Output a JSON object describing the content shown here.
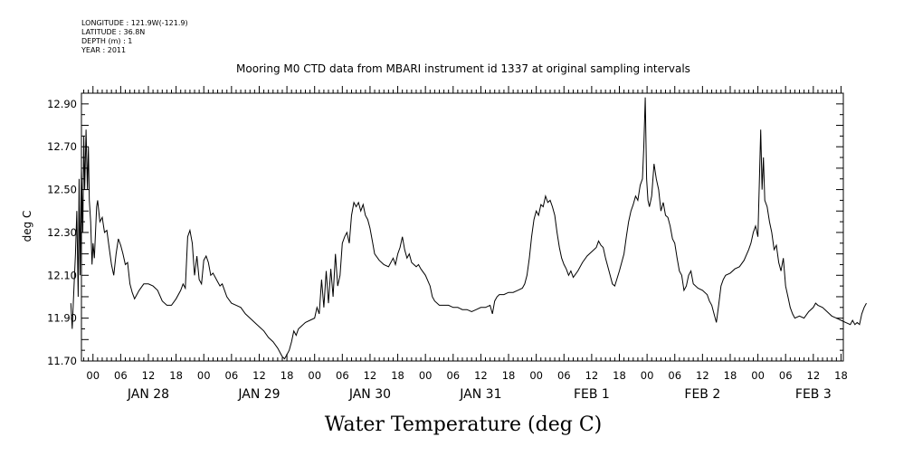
{
  "meta": {
    "longitude": "LONGITUDE : 121.9W(-121.9)",
    "latitude": "LATITUDE : 36.8N",
    "depth": "DEPTH (m) : 1",
    "year": "YEAR : 2011"
  },
  "chart_data": {
    "type": "line",
    "title": "Mooring M0 CTD data from MBARI instrument id 1337 at original sampling intervals",
    "xlabel": "Water Temperature (deg C)",
    "ylabel": "deg C",
    "ylim": [
      11.7,
      12.95
    ],
    "yticks": [
      "11.70",
      "11.90",
      "12.10",
      "12.30",
      "12.50",
      "12.70",
      "12.90"
    ],
    "x_units": "hours since JAN 28 00:00",
    "xlim": [
      -2.5,
      162.5
    ],
    "hour_ticks": [
      "00",
      "06",
      "12",
      "18",
      "00",
      "06",
      "12",
      "18",
      "00",
      "06",
      "12",
      "18",
      "00",
      "06",
      "12",
      "18",
      "00",
      "06",
      "12",
      "18",
      "00",
      "06",
      "12",
      "18",
      "00",
      "06",
      "12",
      "18"
    ],
    "day_labels": [
      "JAN 28",
      "JAN 29",
      "JAN 30",
      "JAN 31",
      "FEB  1",
      "FEB  2",
      "FEB  3"
    ],
    "grid": false,
    "series": [
      {
        "color": "#000000",
        "points": [
          [
            -4.8,
            11.97
          ],
          [
            -4.5,
            11.85
          ],
          [
            -4.2,
            12.0
          ],
          [
            -3.8,
            12.2
          ],
          [
            -3.5,
            12.4
          ],
          [
            -3.2,
            12.0
          ],
          [
            -3.0,
            12.55
          ],
          [
            -2.8,
            12.1
          ],
          [
            -2.5,
            12.6
          ],
          [
            -2.2,
            12.3
          ],
          [
            -2.0,
            12.75
          ],
          [
            -1.8,
            12.5
          ],
          [
            -1.5,
            12.78
          ],
          [
            -1.2,
            12.5
          ],
          [
            -1.0,
            12.7
          ],
          [
            -0.8,
            12.45
          ],
          [
            -0.5,
            12.35
          ],
          [
            -0.2,
            12.15
          ],
          [
            0.0,
            12.25
          ],
          [
            0.3,
            12.18
          ],
          [
            0.8,
            12.42
          ],
          [
            1.0,
            12.45
          ],
          [
            1.5,
            12.35
          ],
          [
            2.0,
            12.37
          ],
          [
            2.5,
            12.3
          ],
          [
            3.0,
            12.31
          ],
          [
            3.5,
            12.23
          ],
          [
            4.0,
            12.15
          ],
          [
            4.5,
            12.1
          ],
          [
            5.0,
            12.2
          ],
          [
            5.5,
            12.27
          ],
          [
            6.0,
            12.24
          ],
          [
            6.5,
            12.2
          ],
          [
            7.0,
            12.15
          ],
          [
            7.5,
            12.16
          ],
          [
            8.0,
            12.06
          ],
          [
            8.5,
            12.02
          ],
          [
            9.0,
            11.99
          ],
          [
            10,
            12.03
          ],
          [
            11,
            12.06
          ],
          [
            12,
            12.06
          ],
          [
            13,
            12.05
          ],
          [
            14,
            12.03
          ],
          [
            15,
            11.98
          ],
          [
            16,
            11.96
          ],
          [
            17,
            11.96
          ],
          [
            18,
            11.99
          ],
          [
            19,
            12.03
          ],
          [
            19.5,
            12.06
          ],
          [
            20,
            12.04
          ],
          [
            20.5,
            12.28
          ],
          [
            21,
            12.31
          ],
          [
            21.5,
            12.25
          ],
          [
            22,
            12.1
          ],
          [
            22.5,
            12.19
          ],
          [
            23,
            12.08
          ],
          [
            23.5,
            12.06
          ],
          [
            24,
            12.17
          ],
          [
            24.5,
            12.19
          ],
          [
            25,
            12.16
          ],
          [
            25.5,
            12.1
          ],
          [
            26,
            12.11
          ],
          [
            27,
            12.07
          ],
          [
            27.5,
            12.05
          ],
          [
            28,
            12.06
          ],
          [
            29,
            12.0
          ],
          [
            30,
            11.97
          ],
          [
            31,
            11.96
          ],
          [
            32,
            11.95
          ],
          [
            33,
            11.92
          ],
          [
            34,
            11.9
          ],
          [
            35,
            11.88
          ],
          [
            36,
            11.86
          ],
          [
            37,
            11.84
          ],
          [
            38,
            11.81
          ],
          [
            39,
            11.79
          ],
          [
            40,
            11.76
          ],
          [
            40.5,
            11.74
          ],
          [
            41,
            11.72
          ],
          [
            41.5,
            11.71
          ],
          [
            42,
            11.73
          ],
          [
            42.5,
            11.75
          ],
          [
            43,
            11.79
          ],
          [
            43.5,
            11.84
          ],
          [
            44,
            11.82
          ],
          [
            44.5,
            11.85
          ],
          [
            45,
            11.86
          ],
          [
            46,
            11.88
          ],
          [
            47,
            11.89
          ],
          [
            48,
            11.9
          ],
          [
            48.5,
            11.95
          ],
          [
            49,
            11.92
          ],
          [
            49.5,
            12.08
          ],
          [
            50,
            11.95
          ],
          [
            50.5,
            12.12
          ],
          [
            51,
            11.97
          ],
          [
            51.5,
            12.13
          ],
          [
            52,
            12.0
          ],
          [
            52.5,
            12.2
          ],
          [
            53,
            12.05
          ],
          [
            53.5,
            12.1
          ],
          [
            54,
            12.25
          ],
          [
            54.5,
            12.28
          ],
          [
            55,
            12.3
          ],
          [
            55.5,
            12.25
          ],
          [
            56,
            12.38
          ],
          [
            56.5,
            12.44
          ],
          [
            57,
            12.42
          ],
          [
            57.5,
            12.44
          ],
          [
            58,
            12.4
          ],
          [
            58.5,
            12.43
          ],
          [
            59,
            12.38
          ],
          [
            59.5,
            12.36
          ],
          [
            60,
            12.32
          ],
          [
            60.5,
            12.26
          ],
          [
            61,
            12.2
          ],
          [
            62,
            12.17
          ],
          [
            63,
            12.15
          ],
          [
            64,
            12.14
          ],
          [
            65,
            12.18
          ],
          [
            65.5,
            12.15
          ],
          [
            66,
            12.2
          ],
          [
            66.5,
            12.23
          ],
          [
            67,
            12.28
          ],
          [
            67.5,
            12.22
          ],
          [
            68,
            12.18
          ],
          [
            68.5,
            12.2
          ],
          [
            69,
            12.16
          ],
          [
            70,
            12.14
          ],
          [
            70.5,
            12.15
          ],
          [
            71,
            12.13
          ],
          [
            72,
            12.1
          ],
          [
            73,
            12.05
          ],
          [
            73.5,
            12.0
          ],
          [
            74,
            11.98
          ],
          [
            75,
            11.96
          ],
          [
            76,
            11.96
          ],
          [
            77,
            11.96
          ],
          [
            78,
            11.95
          ],
          [
            79,
            11.95
          ],
          [
            80,
            11.94
          ],
          [
            81,
            11.94
          ],
          [
            82,
            11.93
          ],
          [
            83,
            11.94
          ],
          [
            84,
            11.95
          ],
          [
            85,
            11.95
          ],
          [
            86,
            11.96
          ],
          [
            86.5,
            11.92
          ],
          [
            87,
            11.98
          ],
          [
            87.5,
            12.0
          ],
          [
            88,
            12.01
          ],
          [
            89,
            12.01
          ],
          [
            90,
            12.02
          ],
          [
            91,
            12.02
          ],
          [
            92,
            12.03
          ],
          [
            93,
            12.04
          ],
          [
            93.5,
            12.06
          ],
          [
            94,
            12.1
          ],
          [
            94.5,
            12.18
          ],
          [
            95,
            12.28
          ],
          [
            95.5,
            12.36
          ],
          [
            96,
            12.4
          ],
          [
            96.5,
            12.38
          ],
          [
            97,
            12.43
          ],
          [
            97.5,
            12.42
          ],
          [
            98,
            12.47
          ],
          [
            98.5,
            12.44
          ],
          [
            99,
            12.45
          ],
          [
            99.5,
            12.42
          ],
          [
            100,
            12.38
          ],
          [
            100.5,
            12.3
          ],
          [
            101,
            12.23
          ],
          [
            101.5,
            12.18
          ],
          [
            102,
            12.15
          ],
          [
            102.5,
            12.13
          ],
          [
            103,
            12.1
          ],
          [
            103.5,
            12.12
          ],
          [
            104,
            12.09
          ],
          [
            105,
            12.12
          ],
          [
            106,
            12.16
          ],
          [
            107,
            12.19
          ],
          [
            108,
            12.21
          ],
          [
            109,
            12.23
          ],
          [
            109.5,
            12.26
          ],
          [
            110,
            12.24
          ],
          [
            110.5,
            12.23
          ],
          [
            111,
            12.18
          ],
          [
            112,
            12.1
          ],
          [
            112.5,
            12.06
          ],
          [
            113,
            12.05
          ],
          [
            114,
            12.12
          ],
          [
            115,
            12.2
          ],
          [
            115.5,
            12.28
          ],
          [
            116,
            12.35
          ],
          [
            116.5,
            12.4
          ],
          [
            117,
            12.43
          ],
          [
            117.5,
            12.47
          ],
          [
            118,
            12.45
          ],
          [
            118.5,
            12.52
          ],
          [
            119,
            12.55
          ],
          [
            119.3,
            12.7
          ],
          [
            119.6,
            12.93
          ],
          [
            119.9,
            12.55
          ],
          [
            120.2,
            12.45
          ],
          [
            120.5,
            12.42
          ],
          [
            121,
            12.47
          ],
          [
            121.5,
            12.62
          ],
          [
            122,
            12.55
          ],
          [
            122.5,
            12.5
          ],
          [
            123,
            12.4
          ],
          [
            123.5,
            12.44
          ],
          [
            124,
            12.38
          ],
          [
            124.5,
            12.37
          ],
          [
            125,
            12.33
          ],
          [
            125.5,
            12.27
          ],
          [
            126,
            12.25
          ],
          [
            126.5,
            12.18
          ],
          [
            127,
            12.12
          ],
          [
            127.5,
            12.1
          ],
          [
            128,
            12.03
          ],
          [
            128.5,
            12.05
          ],
          [
            129,
            12.1
          ],
          [
            129.5,
            12.12
          ],
          [
            130,
            12.06
          ],
          [
            131,
            12.04
          ],
          [
            132,
            12.03
          ],
          [
            133,
            12.01
          ],
          [
            133.5,
            11.98
          ],
          [
            134,
            11.96
          ],
          [
            134.5,
            11.92
          ],
          [
            135,
            11.88
          ],
          [
            135.5,
            11.96
          ],
          [
            136,
            12.05
          ],
          [
            136.5,
            12.08
          ],
          [
            137,
            12.1
          ],
          [
            138,
            12.11
          ],
          [
            139,
            12.13
          ],
          [
            140,
            12.14
          ],
          [
            141,
            12.17
          ],
          [
            142,
            12.22
          ],
          [
            142.5,
            12.25
          ],
          [
            143,
            12.3
          ],
          [
            143.5,
            12.33
          ],
          [
            144,
            12.28
          ],
          [
            144.3,
            12.52
          ],
          [
            144.6,
            12.78
          ],
          [
            144.9,
            12.5
          ],
          [
            145.2,
            12.65
          ],
          [
            145.5,
            12.45
          ],
          [
            146,
            12.42
          ],
          [
            146.5,
            12.35
          ],
          [
            147,
            12.3
          ],
          [
            147.5,
            12.22
          ],
          [
            148,
            12.24
          ],
          [
            148.5,
            12.16
          ],
          [
            149,
            12.12
          ],
          [
            149.5,
            12.18
          ],
          [
            150,
            12.05
          ],
          [
            150.5,
            12.0
          ],
          [
            151,
            11.95
          ],
          [
            151.5,
            11.92
          ],
          [
            152,
            11.9
          ],
          [
            153,
            11.91
          ],
          [
            154,
            11.9
          ],
          [
            155,
            11.93
          ],
          [
            156,
            11.95
          ],
          [
            156.5,
            11.97
          ],
          [
            157,
            11.96
          ],
          [
            158,
            11.95
          ],
          [
            159,
            11.93
          ],
          [
            160,
            11.91
          ],
          [
            161,
            11.9
          ],
          [
            162,
            11.89
          ],
          [
            163,
            11.88
          ],
          [
            164,
            11.87
          ],
          [
            164.5,
            11.89
          ],
          [
            165,
            11.87
          ],
          [
            165.5,
            11.88
          ],
          [
            166,
            11.87
          ],
          [
            166.5,
            11.92
          ],
          [
            167,
            11.95
          ],
          [
            167.5,
            11.97
          ]
        ]
      }
    ]
  }
}
